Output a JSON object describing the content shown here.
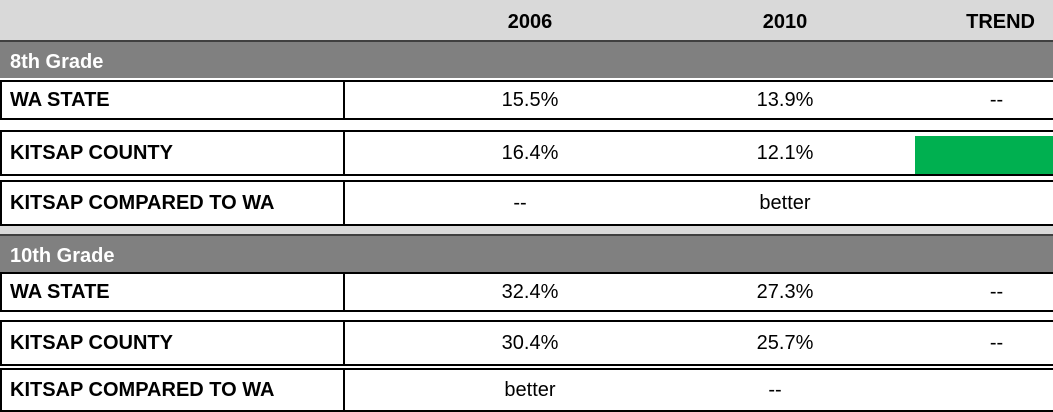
{
  "table": {
    "columns": [
      "2006",
      "2010",
      "TREND"
    ],
    "sections": [
      {
        "title": "8th Grade",
        "rows": [
          {
            "label": "WA STATE",
            "values": [
              "15.5%",
              "13.9%"
            ],
            "trend": "--"
          },
          {
            "label": "KITSAP COUNTY",
            "values": [
              "16.4%",
              "12.1%"
            ],
            "trend_color": "#00b050"
          },
          {
            "label": "KITSAP COMPARED TO WA",
            "values": [
              "--",
              "better"
            ]
          }
        ]
      },
      {
        "title": "10th Grade",
        "rows": [
          {
            "label": "WA STATE",
            "values": [
              "32.4%",
              "27.3%"
            ],
            "trend": "--"
          },
          {
            "label": "KITSAP COUNTY",
            "values": [
              "30.4%",
              "25.7%"
            ],
            "trend": "--"
          },
          {
            "label": "KITSAP COMPARED TO WA",
            "values": [
              "better",
              "--"
            ]
          }
        ]
      }
    ]
  }
}
